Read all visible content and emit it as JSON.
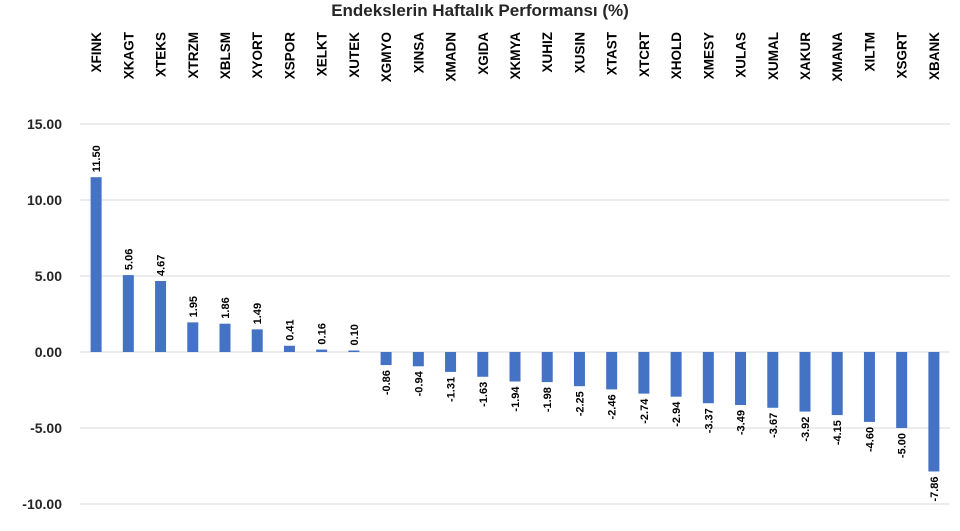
{
  "chart_data": {
    "type": "bar",
    "title": "Endekslerin Haftalık Performansı (%)",
    "categories": [
      "XFINK",
      "XKAGT",
      "XTEKS",
      "XTRZM",
      "XBLSM",
      "XYORT",
      "XSPOR",
      "XELKT",
      "XUTEK",
      "XGMYO",
      "XINSA",
      "XMADN",
      "XGIDA",
      "XKMYA",
      "XUHIZ",
      "XUSIN",
      "XTAST",
      "XTCRT",
      "XHOLD",
      "XMESY",
      "XULAS",
      "XUMAL",
      "XAKUR",
      "XMANA",
      "XILTM",
      "XSGRT",
      "XBANK"
    ],
    "values": [
      11.5,
      5.06,
      4.67,
      1.95,
      1.86,
      1.49,
      0.41,
      0.16,
      0.1,
      -0.86,
      -0.94,
      -1.31,
      -1.63,
      -1.94,
      -1.98,
      -2.25,
      -2.46,
      -2.74,
      -2.94,
      -3.37,
      -3.49,
      -3.67,
      -3.92,
      -4.15,
      -4.6,
      -5.0,
      -7.86
    ],
    "yticks": [
      "15.00",
      "10.00",
      "5.00",
      "0.00",
      "-5.00",
      "-10.00"
    ],
    "ylim": [
      -10,
      15
    ],
    "grid": true,
    "bar_color": "#4472C4",
    "grid_color": "#d9d9d9"
  }
}
